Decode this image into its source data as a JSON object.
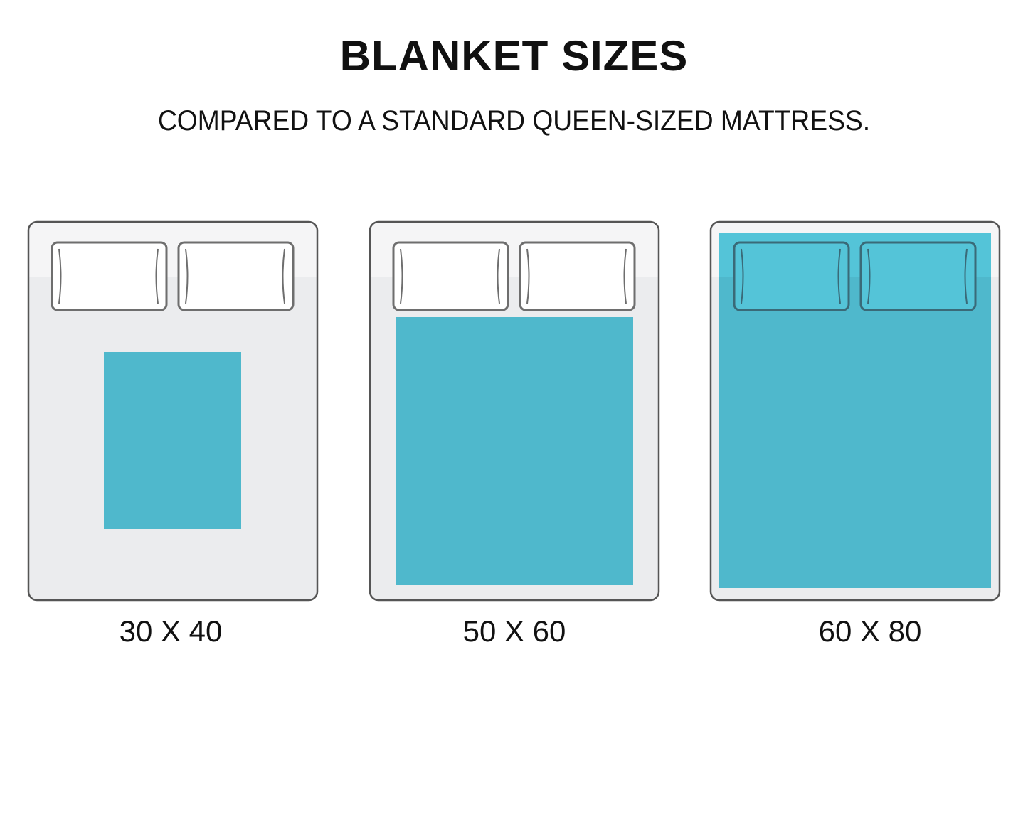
{
  "title": "BLANKET SIZES",
  "subtitle": "COMPARED TO A STANDARD QUEEN-SIZED MATTRESS.",
  "colors": {
    "blanket": "#4fb8cc",
    "mattress_top": "#f5f5f6",
    "mattress_bottom": "#ebecee",
    "outline": "#555555"
  },
  "panels": [
    {
      "label": "30 X 40"
    },
    {
      "label": "50 X 60"
    },
    {
      "label": "60 X 80"
    }
  ]
}
